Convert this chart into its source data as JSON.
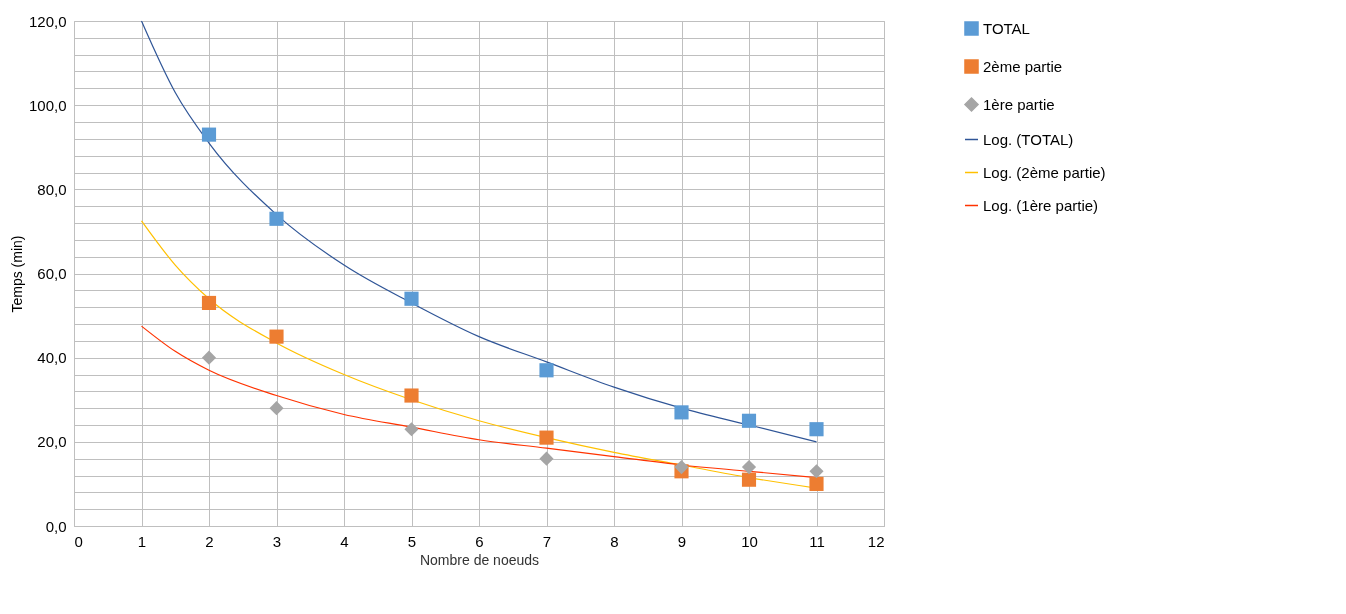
{
  "chart_data": {
    "type": "scatter",
    "xlabel": "Nombre de noeuds",
    "ylabel": "Temps (min)",
    "xlim": [
      0,
      12
    ],
    "xticks": [
      0,
      1,
      2,
      3,
      4,
      5,
      6,
      7,
      8,
      9,
      10,
      11,
      12
    ],
    "ylim": [
      0,
      120
    ],
    "yticks": [
      {
        "value": 0,
        "label": "0,0"
      },
      {
        "value": 4,
        "label": null
      },
      {
        "value": 8,
        "label": null
      },
      {
        "value": 12,
        "label": null
      },
      {
        "value": 16,
        "label": null
      },
      {
        "value": 20,
        "label": "20,0"
      },
      {
        "value": 24,
        "label": null
      },
      {
        "value": 28,
        "label": null
      },
      {
        "value": 32,
        "label": null
      },
      {
        "value": 36,
        "label": null
      },
      {
        "value": 40,
        "label": "40,0"
      },
      {
        "value": 44,
        "label": null
      },
      {
        "value": 48,
        "label": null
      },
      {
        "value": 52,
        "label": null
      },
      {
        "value": 56,
        "label": null
      },
      {
        "value": 60,
        "label": "60,0"
      },
      {
        "value": 64,
        "label": null
      },
      {
        "value": 68,
        "label": null
      },
      {
        "value": 72,
        "label": null
      },
      {
        "value": 76,
        "label": null
      },
      {
        "value": 80,
        "label": "80,0"
      },
      {
        "value": 84,
        "label": null
      },
      {
        "value": 88,
        "label": null
      },
      {
        "value": 92,
        "label": null
      },
      {
        "value": 96,
        "label": null
      },
      {
        "value": 100,
        "label": "100,0"
      },
      {
        "value": 104,
        "label": null
      },
      {
        "value": 108,
        "label": null
      },
      {
        "value": 112,
        "label": null
      },
      {
        "value": 116,
        "label": null
      },
      {
        "value": 120,
        "label": "120,0"
      }
    ],
    "grid": true,
    "legend": "right",
    "series": [
      {
        "name": "TOTAL",
        "marker": "square",
        "color": "#5b9bd5",
        "x": [
          2,
          3,
          5,
          7,
          9,
          10,
          11
        ],
        "values": [
          93,
          73,
          54,
          37,
          27,
          25,
          23
        ]
      },
      {
        "name": "2ème partie",
        "marker": "square",
        "color": "#ed7d31",
        "x": [
          2,
          3,
          5,
          7,
          9,
          10,
          11
        ],
        "values": [
          53,
          45,
          31,
          21,
          13,
          11,
          10
        ]
      },
      {
        "name": "1ère partie",
        "marker": "diamond",
        "color": "#a5a5a5",
        "x": [
          2,
          3,
          5,
          7,
          9,
          10,
          11
        ],
        "values": [
          40,
          28,
          23,
          16,
          14,
          14,
          13
        ]
      },
      {
        "name": "Log. (TOTAL)",
        "type": "line",
        "color": "#2f5597",
        "x": [
          1,
          1.5,
          2,
          3,
          4,
          5,
          6,
          7,
          8,
          9,
          10,
          11
        ],
        "values": [
          120,
          103,
          91,
          74,
          62,
          53,
          45,
          39,
          33,
          28,
          24,
          20
        ]
      },
      {
        "name": "Log. (2ème partie)",
        "type": "line",
        "color": "#ffc000",
        "x": [
          1,
          1.5,
          2,
          3,
          4,
          5,
          6,
          7,
          8,
          9,
          10,
          11
        ],
        "values": [
          72.5,
          62,
          54,
          43.5,
          36,
          30,
          25,
          21,
          17.5,
          14.5,
          11.5,
          9
        ]
      },
      {
        "name": "Log. (1ère partie)",
        "type": "line",
        "color": "#ff3300",
        "x": [
          1,
          1.5,
          2,
          3,
          4,
          5,
          6,
          7,
          8,
          9,
          10,
          11
        ],
        "values": [
          47.5,
          41.5,
          37,
          31,
          26.5,
          23.5,
          20.5,
          18.5,
          16.5,
          14.5,
          13,
          11.5
        ]
      }
    ]
  }
}
